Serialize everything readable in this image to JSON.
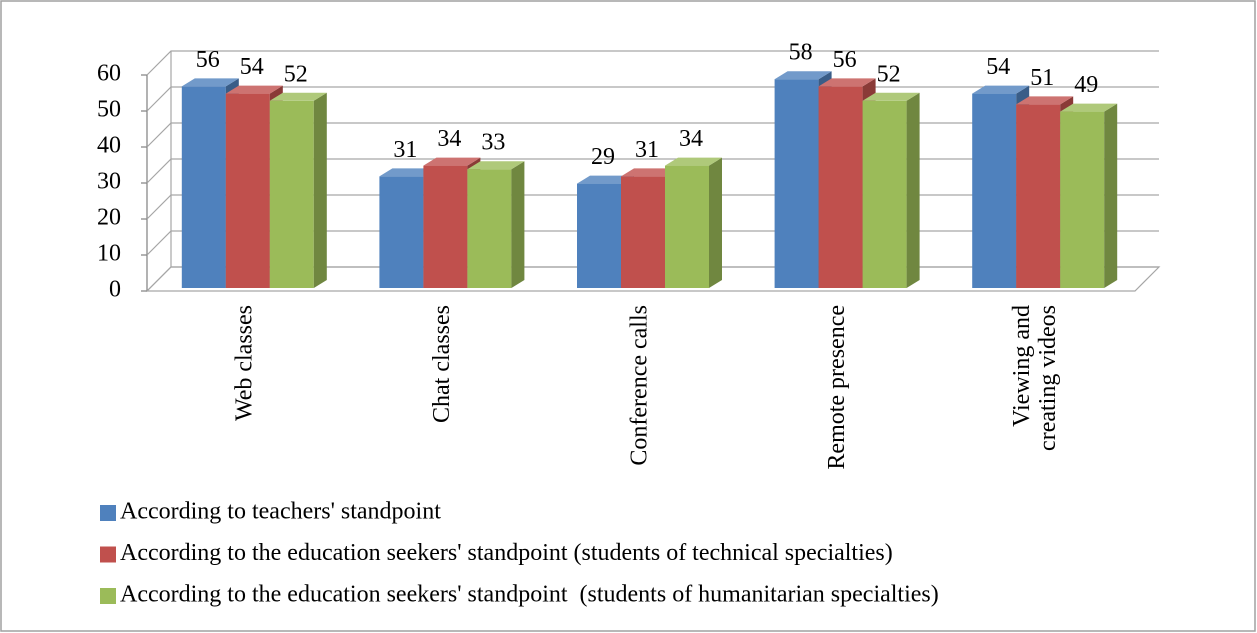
{
  "chart_data": {
    "type": "bar3d",
    "categories": [
      "Web classes",
      "Chat classes",
      "Conference calls",
      "Remote presence",
      "Viewing and creating videos"
    ],
    "series": [
      {
        "name": "According to teachers' standpoint",
        "color": "#4f81bd",
        "values": [
          56,
          31,
          29,
          58,
          54
        ]
      },
      {
        "name": "According to the education seekers' standpoint (students of technical specialties)",
        "color": "#c0504d",
        "values": [
          54,
          34,
          31,
          56,
          51
        ]
      },
      {
        "name": "According to the education seekers' standpoint  (students of humanitarian specialties)",
        "color": "#9bbb59",
        "values": [
          52,
          33,
          34,
          52,
          49
        ]
      }
    ],
    "ylim": [
      0,
      60
    ],
    "yticks": [
      0,
      10,
      20,
      30,
      40,
      50,
      60
    ],
    "grid": true,
    "legend": "bottom"
  }
}
